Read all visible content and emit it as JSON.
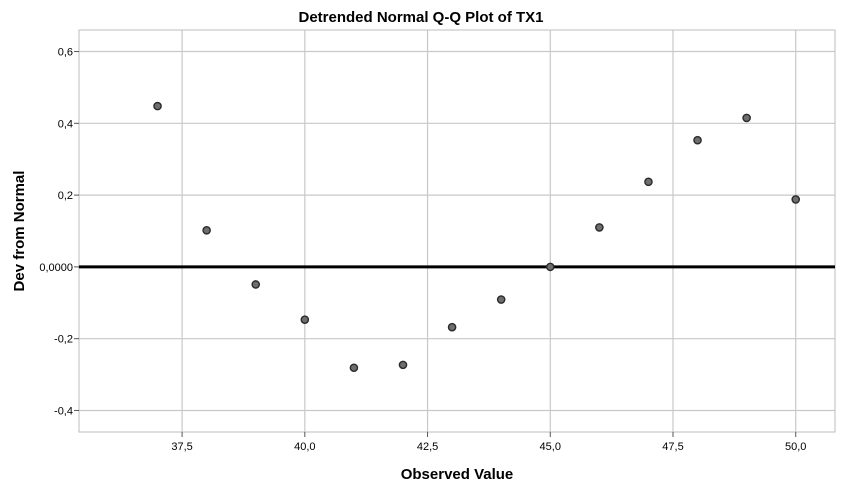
{
  "chart_data": {
    "type": "scatter",
    "title": "Detrended Normal Q-Q Plot of TX1",
    "xlabel": "Observed Value",
    "ylabel": "Dev from Normal",
    "xlim": [
      35.4,
      50.8
    ],
    "ylim": [
      -0.46,
      0.66
    ],
    "x_ticks": [
      37.5,
      40.0,
      42.5,
      45.0,
      47.5,
      50.0
    ],
    "x_tick_labels": [
      "37,5",
      "40,0",
      "42,5",
      "45,0",
      "47,5",
      "50,0"
    ],
    "y_ticks": [
      0.6,
      0.4,
      0.2,
      0.0,
      -0.2,
      -0.4
    ],
    "y_tick_labels": [
      "0,6",
      "0,4",
      "0,2",
      "0,0000",
      "-0,2",
      "-0,4"
    ],
    "grid": true,
    "reference_line_y": 0,
    "x": [
      37,
      38,
      39,
      40,
      41,
      42,
      43,
      44,
      45,
      46,
      47,
      48,
      49,
      50
    ],
    "y": [
      0.448,
      0.102,
      -0.049,
      -0.147,
      -0.281,
      -0.273,
      -0.168,
      -0.091,
      0.0,
      0.11,
      0.237,
      0.353,
      0.415,
      0.188
    ],
    "colors": {
      "point_fill": "#6e6e6e",
      "point_stroke": "#2a2a2a",
      "grid": "#c8c8c8",
      "zero_line": "#000000"
    }
  }
}
